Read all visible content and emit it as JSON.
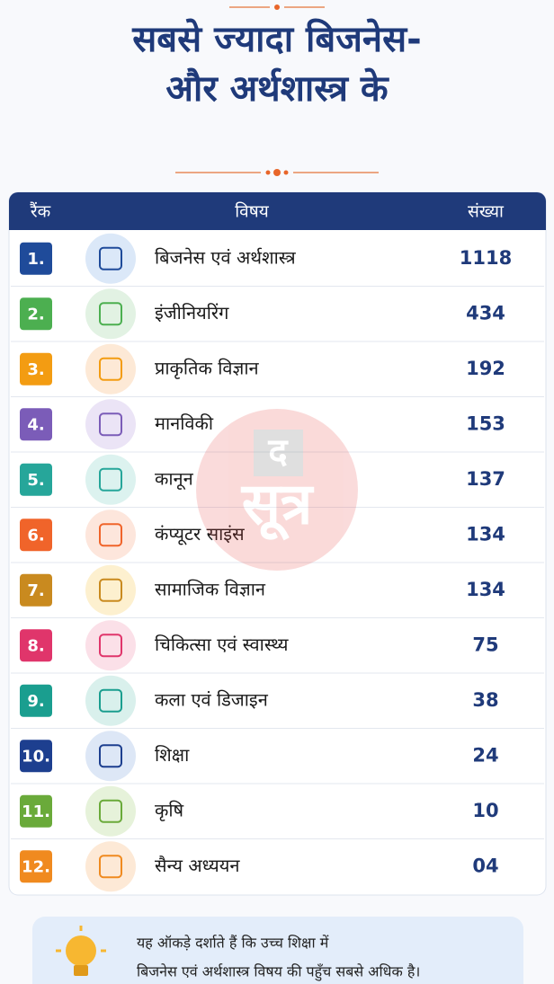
{
  "header": {
    "title_lines": [
      "सबसे ज्यादा बिजनेस-",
      "और अर्थशास्त्र के"
    ]
  },
  "table": {
    "columns": [
      "रैंक",
      "विषय",
      "संख्या"
    ],
    "rows": [
      [
        "1.",
        "बिजनेस एवं अर्थशास्त्र",
        "1118"
      ],
      [
        "2.",
        "इंजीनियरिंग",
        "434"
      ],
      [
        "3.",
        "प्राकृतिक विज्ञान",
        "192"
      ],
      [
        "4.",
        "मानविकी",
        "153"
      ],
      [
        "5.",
        "कानून",
        "137"
      ],
      [
        "6.",
        "कंप्यूटर साइंस",
        "134"
      ],
      [
        "7.",
        "सामाजिक विज्ञान",
        "134"
      ],
      [
        "8.",
        "चिकित्सा एवं स्वास्थ्य",
        "75"
      ],
      [
        "9.",
        "कला एवं डिजाइन",
        "38"
      ],
      [
        "10.",
        "शिक्षा",
        "24"
      ],
      [
        "11.",
        "कृषि",
        "10"
      ],
      [
        "12.",
        "सैन्य अध्ययन",
        "04"
      ]
    ]
  },
  "watermark": [
    "द",
    "सूत्र"
  ],
  "footer": {
    "lines": [
      "यह ऑकड़े दर्शाते हैं कि उच्च शिक्षा में",
      "बिजनेस एवं अर्थशास्त्र विषय की पहुँच सबसे अधिक है।"
    ]
  }
}
